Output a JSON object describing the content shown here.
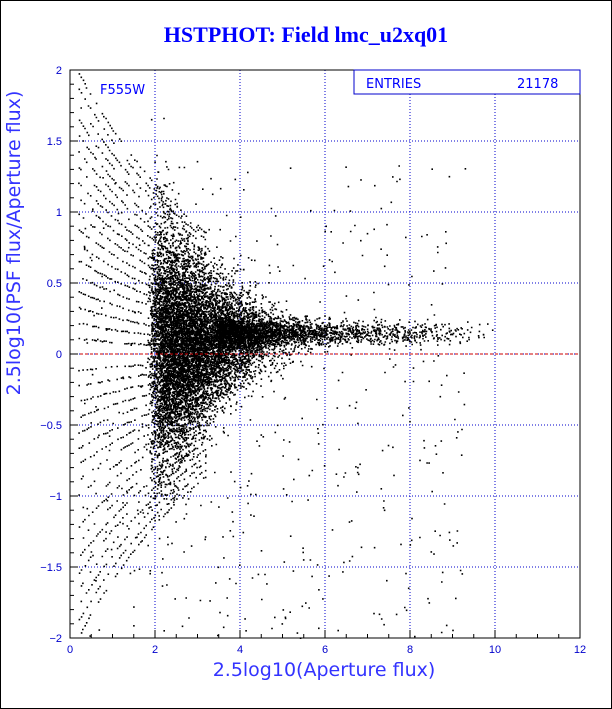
{
  "chart_data": {
    "type": "scatter",
    "title": "HSTPHOT: Field lmc_u2xq01",
    "xlabel": "2.5log10(Aperture flux)",
    "ylabel": "2.5log10(PSF flux/Aperture flux)",
    "xlim": [
      0,
      12
    ],
    "ylim": [
      -2,
      2
    ],
    "x_ticks": [
      "0",
      "2",
      "4",
      "6",
      "8",
      "10",
      "12"
    ],
    "y_ticks": [
      "-2",
      "-1.5",
      "-1",
      "-0.5",
      "0",
      "0.5",
      "1",
      "1.5",
      "2"
    ],
    "grid": true,
    "filter_label": "F555W",
    "stats": {
      "label": "ENTRIES",
      "value": "21178"
    },
    "reference_line": {
      "y": 0,
      "color": "#cc0000",
      "style": "dashed"
    },
    "point_color": "#000000",
    "grid_color": "#0000cc",
    "points_note_count": 21178
  }
}
